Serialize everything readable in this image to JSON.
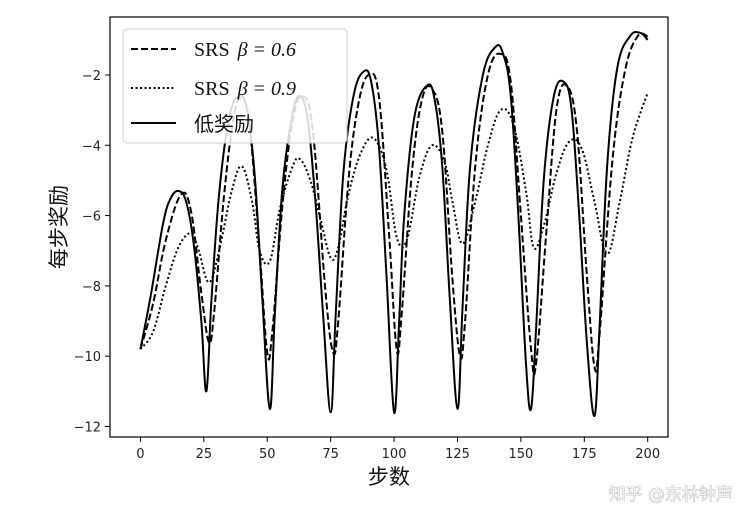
{
  "chart_data": {
    "type": "line",
    "title": "",
    "xlabel": "步数",
    "ylabel": "每步奖励",
    "xlim": [
      -12,
      208
    ],
    "ylim": [
      -12.3,
      -0.35
    ],
    "xticks": [
      0,
      25,
      50,
      75,
      100,
      125,
      150,
      175,
      200
    ],
    "yticks": [
      -12,
      -10,
      -8,
      -6,
      -4,
      -2
    ],
    "grid": false,
    "legend_position": "top-left",
    "series": [
      {
        "name": "SRS β = 0.6",
        "legend_prefix": "SRS",
        "legend_beta": "β = 0.6",
        "style": "dashed",
        "color": "#000000",
        "x": [
          0,
          5,
          10,
          16,
          20,
          24,
          27,
          29,
          33,
          37,
          40,
          43,
          47,
          50,
          52,
          56,
          60,
          64,
          68,
          73,
          76,
          78,
          82,
          86,
          90,
          94,
          98,
          101,
          103,
          107,
          111,
          115,
          119,
          123,
          126,
          128,
          132,
          137,
          142,
          146,
          150,
          154,
          156,
          160,
          164,
          168,
          172,
          176,
          179,
          181,
          186,
          191,
          196,
          200
        ],
        "values": [
          -9.8,
          -8.5,
          -6.7,
          -5.4,
          -5.9,
          -8.2,
          -9.6,
          -8.8,
          -5.4,
          -3.1,
          -2.7,
          -3.4,
          -7.0,
          -9.9,
          -9.3,
          -5.7,
          -3.3,
          -2.6,
          -3.6,
          -8.2,
          -9.9,
          -9.0,
          -5.0,
          -2.8,
          -2.0,
          -2.6,
          -6.5,
          -9.8,
          -8.8,
          -4.8,
          -2.7,
          -2.4,
          -3.6,
          -7.8,
          -10.0,
          -9.0,
          -4.6,
          -2.0,
          -1.4,
          -2.2,
          -6.0,
          -9.8,
          -10.2,
          -6.5,
          -3.0,
          -2.3,
          -3.5,
          -7.7,
          -10.3,
          -9.4,
          -4.5,
          -1.9,
          -0.9,
          -0.9
        ]
      },
      {
        "name": "SRS β = 0.9",
        "legend_prefix": "SRS",
        "legend_beta": "β = 0.9",
        "style": "dotted",
        "color": "#000000",
        "x": [
          0,
          5,
          10,
          15,
          20,
          23,
          27,
          31,
          36,
          40,
          44,
          47,
          51,
          55,
          60,
          63,
          67,
          71,
          75,
          78,
          82,
          87,
          92,
          97,
          101,
          105,
          110,
          115,
          120,
          123,
          127,
          132,
          137,
          142,
          147,
          152,
          155,
          159,
          164,
          169,
          174,
          179,
          184,
          189,
          194,
          200
        ],
        "values": [
          -9.8,
          -9.3,
          -8.0,
          -6.9,
          -6.5,
          -7.0,
          -7.9,
          -7.0,
          -5.3,
          -4.6,
          -5.6,
          -7.0,
          -7.3,
          -5.8,
          -4.6,
          -4.4,
          -5.0,
          -6.1,
          -7.2,
          -6.9,
          -5.4,
          -4.2,
          -3.8,
          -4.7,
          -6.6,
          -6.7,
          -4.9,
          -4.0,
          -4.5,
          -5.6,
          -6.8,
          -5.6,
          -4.0,
          -3.0,
          -3.4,
          -5.3,
          -6.9,
          -6.3,
          -4.8,
          -3.9,
          -4.1,
          -5.6,
          -7.1,
          -5.6,
          -3.8,
          -2.5
        ]
      },
      {
        "name": "低奖励",
        "style": "solid",
        "color": "#000000",
        "x": [
          0,
          4,
          9,
          12,
          15,
          18,
          21,
          24,
          26,
          28,
          31,
          35,
          39,
          42,
          45,
          48,
          51,
          53,
          56,
          60,
          63,
          66,
          69,
          72,
          75,
          77,
          80,
          84,
          88,
          91,
          94,
          97,
          100,
          102,
          104,
          108,
          113,
          116,
          119,
          122,
          125,
          127,
          130,
          135,
          140,
          143,
          146,
          149,
          152,
          154,
          156,
          159,
          163,
          167,
          170,
          173,
          176,
          179,
          181,
          184,
          188,
          193,
          197,
          200
        ],
        "values": [
          -9.8,
          -8.3,
          -6.2,
          -5.5,
          -5.3,
          -5.6,
          -6.8,
          -9.0,
          -11.0,
          -8.4,
          -5.4,
          -3.2,
          -2.6,
          -3.0,
          -4.8,
          -8.3,
          -11.5,
          -8.8,
          -5.2,
          -3.1,
          -2.6,
          -3.3,
          -5.6,
          -8.8,
          -11.6,
          -8.8,
          -4.8,
          -2.6,
          -1.9,
          -2.2,
          -4.0,
          -7.7,
          -11.6,
          -9.0,
          -6.0,
          -3.2,
          -2.3,
          -2.7,
          -4.6,
          -8.4,
          -11.5,
          -8.6,
          -4.6,
          -2.0,
          -1.2,
          -1.4,
          -2.6,
          -6.0,
          -10.2,
          -11.5,
          -9.2,
          -5.0,
          -2.6,
          -2.2,
          -3.0,
          -6.0,
          -9.6,
          -11.7,
          -9.2,
          -4.6,
          -1.8,
          -0.9,
          -0.8,
          -1.0
        ]
      }
    ]
  },
  "watermark": "知乎 @东林钟声"
}
